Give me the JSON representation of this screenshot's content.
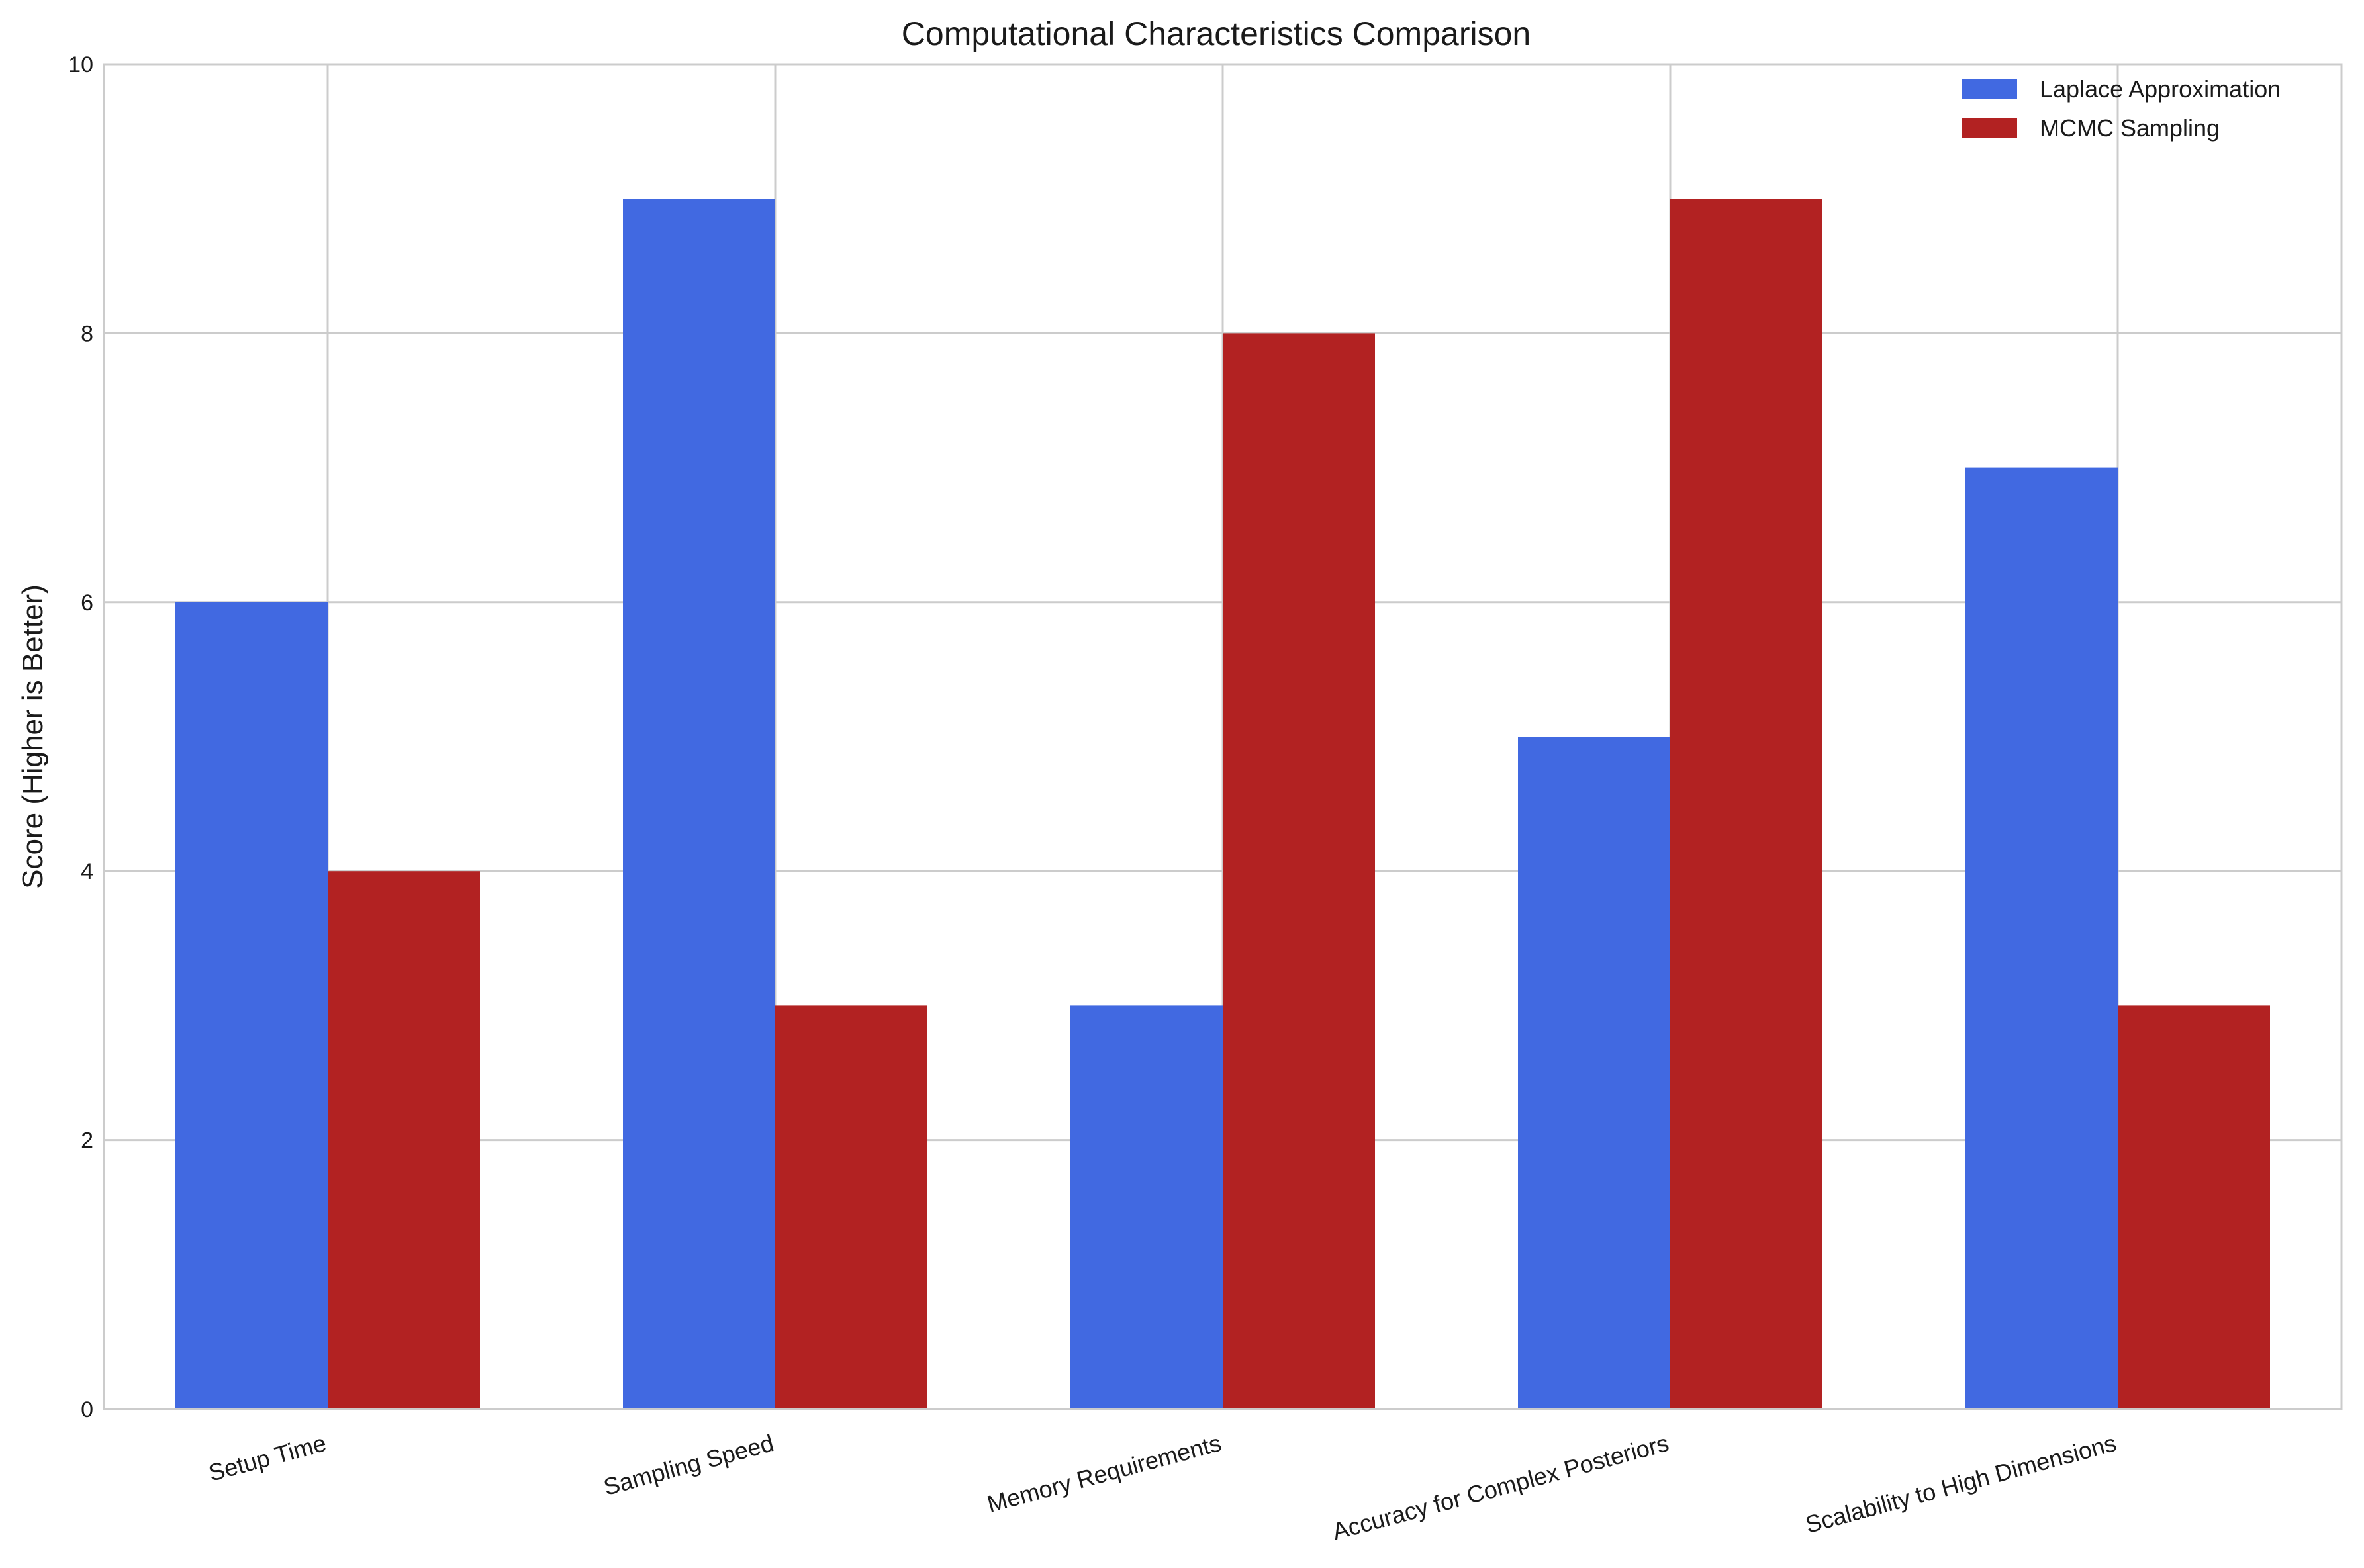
{
  "chart_data": {
    "type": "bar",
    "title": "Computational Characteristics Comparison",
    "xlabel": "",
    "ylabel": "Score (Higher is Better)",
    "ylim": [
      0,
      10
    ],
    "yticks": [
      0,
      2,
      4,
      6,
      8,
      10
    ],
    "grid": true,
    "legend_position": "top-right",
    "categories": [
      "Setup Time",
      "Sampling Speed",
      "Memory Requirements",
      "Accuracy for Complex Posteriors",
      "Scalability to High Dimensions"
    ],
    "series": [
      {
        "name": "Laplace Approximation",
        "color": "#4169e1",
        "values": [
          6,
          9,
          3,
          5,
          7
        ]
      },
      {
        "name": "MCMC Sampling",
        "color": "#b22222",
        "values": [
          4,
          3,
          8,
          9,
          3
        ]
      }
    ]
  }
}
